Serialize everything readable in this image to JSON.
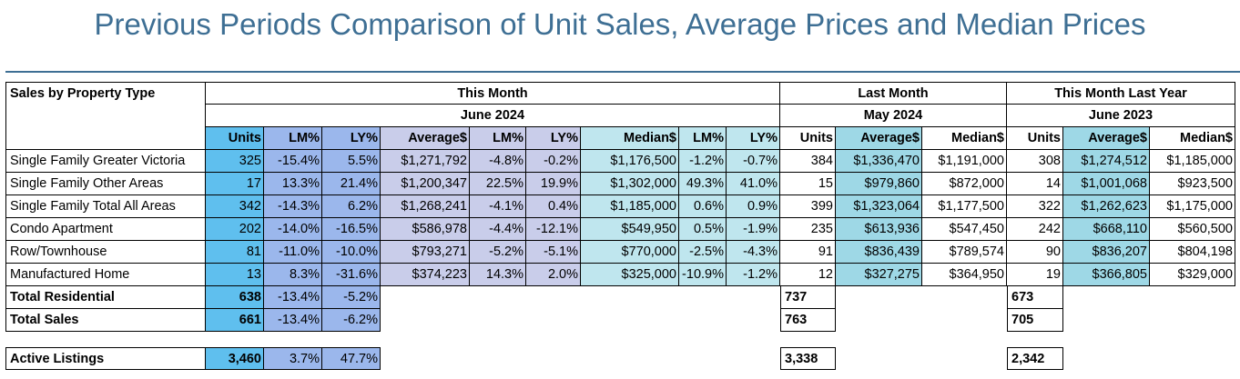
{
  "title": "Previous Periods Comparison of Unit Sales, Average Prices and Median Prices",
  "header": {
    "row_label": "Sales by Property Type",
    "groups": [
      {
        "title": "This Month",
        "period": "June 2024"
      },
      {
        "title": "Last Month",
        "period": "May 2024"
      },
      {
        "title": "This Month Last Year",
        "period": "June 2023"
      }
    ],
    "this_month_cols": [
      "Units",
      "LM%",
      "LY%",
      "Average$",
      "LM%",
      "LY%",
      "Median$",
      "LM%",
      "LY%"
    ],
    "last_month_cols": [
      "Units",
      "Average$",
      "Median$"
    ],
    "last_year_cols": [
      "Units",
      "Average$",
      "Median$"
    ]
  },
  "rows": [
    {
      "label": "Single Family Greater Victoria",
      "tm": [
        "325",
        "-15.4%",
        "5.5%",
        "$1,271,792",
        "-4.8%",
        "-0.2%",
        "$1,176,500",
        "-1.2%",
        "-0.7%"
      ],
      "lm": [
        "384",
        "$1,336,470",
        "$1,191,000"
      ],
      "ly": [
        "308",
        "$1,274,512",
        "$1,185,000"
      ]
    },
    {
      "label": "Single Family Other Areas",
      "tm": [
        "17",
        "13.3%",
        "21.4%",
        "$1,200,347",
        "22.5%",
        "19.9%",
        "$1,302,000",
        "49.3%",
        "41.0%"
      ],
      "lm": [
        "15",
        "$979,860",
        "$872,000"
      ],
      "ly": [
        "14",
        "$1,001,068",
        "$923,500"
      ]
    },
    {
      "label": "Single Family Total All Areas",
      "tm": [
        "342",
        "-14.3%",
        "6.2%",
        "$1,268,241",
        "-4.1%",
        "0.4%",
        "$1,185,000",
        "0.6%",
        "0.9%"
      ],
      "lm": [
        "399",
        "$1,323,064",
        "$1,177,500"
      ],
      "ly": [
        "322",
        "$1,262,623",
        "$1,175,000"
      ]
    },
    {
      "label": "Condo Apartment",
      "tm": [
        "202",
        "-14.0%",
        "-16.5%",
        "$586,978",
        "-4.4%",
        "-12.1%",
        "$549,950",
        "0.5%",
        "-1.9%"
      ],
      "lm": [
        "235",
        "$613,936",
        "$547,450"
      ],
      "ly": [
        "242",
        "$668,110",
        "$560,500"
      ]
    },
    {
      "label": "Row/Townhouse",
      "tm": [
        "81",
        "-11.0%",
        "-10.0%",
        "$793,271",
        "-5.2%",
        "-5.1%",
        "$770,000",
        "-2.5%",
        "-4.3%"
      ],
      "lm": [
        "91",
        "$836,439",
        "$789,574"
      ],
      "ly": [
        "90",
        "$836,207",
        "$804,198"
      ]
    },
    {
      "label": "Manufactured Home",
      "tm": [
        "13",
        "8.3%",
        "-31.6%",
        "$374,223",
        "14.3%",
        "2.0%",
        "$325,000",
        "-10.9%",
        "-1.2%"
      ],
      "lm": [
        "12",
        "$327,275",
        "$364,950"
      ],
      "ly": [
        "19",
        "$366,805",
        "$329,000"
      ]
    }
  ],
  "totals": [
    {
      "label": "Total Residential",
      "tm": [
        "638",
        "-13.4%",
        "-5.2%"
      ],
      "lm": "737",
      "ly": "673"
    },
    {
      "label": "Total Sales",
      "tm": [
        "661",
        "-13.4%",
        "-6.2%"
      ],
      "lm": "763",
      "ly": "705"
    }
  ],
  "active": {
    "label": "Active Listings",
    "tm": [
      "3,460",
      "3.7%",
      "47.7%"
    ],
    "lm": "3,338",
    "ly": "2,342"
  }
}
